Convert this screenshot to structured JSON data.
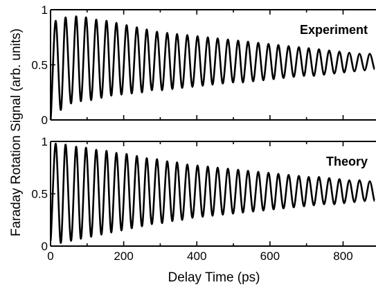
{
  "chart_data": {
    "type": "line",
    "ylabel": "Faraday Rotation Signal (arb. units)",
    "xlabel": "Delay Time (ps)",
    "xlim": [
      0,
      890
    ],
    "xticks": [
      0,
      200,
      400,
      600,
      800
    ],
    "grid": false,
    "legend": "none",
    "line_color": "#000000",
    "panels": [
      {
        "title": "Experiment",
        "title_position": "top-right",
        "ylim": [
          0,
          1
        ],
        "yticks": [
          0,
          0.5,
          1
        ],
        "ytick_labels": [
          "0",
          "0.5",
          "1"
        ],
        "series": [
          {
            "x": [
              0,
              14,
              28,
              41,
              56,
              70,
              83,
              97,
              111,
              125,
              139,
              153,
              166,
              180,
              194,
              208,
              222,
              236,
              250,
              263,
              277,
              291,
              305,
              319,
              333,
              346,
              360,
              374,
              388,
              402,
              416,
              430,
              443,
              457,
              471,
              485,
              499,
              513,
              526,
              540,
              554,
              568,
              582,
              596,
              610,
              623,
              637,
              651,
              665,
              679,
              693,
              706,
              720,
              734,
              748,
              762,
              776,
              790,
              803,
              817,
              831,
              845,
              859,
              873,
              886
            ],
            "y": [
              0.0,
              0.9,
              0.09,
              0.93,
              0.15,
              0.94,
              0.17,
              0.93,
              0.18,
              0.91,
              0.2,
              0.9,
              0.22,
              0.88,
              0.23,
              0.86,
              0.24,
              0.84,
              0.25,
              0.82,
              0.27,
              0.8,
              0.27,
              0.79,
              0.28,
              0.78,
              0.29,
              0.77,
              0.3,
              0.76,
              0.31,
              0.75,
              0.32,
              0.74,
              0.33,
              0.73,
              0.34,
              0.72,
              0.34,
              0.71,
              0.35,
              0.7,
              0.36,
              0.69,
              0.37,
              0.68,
              0.38,
              0.67,
              0.39,
              0.66,
              0.4,
              0.65,
              0.4,
              0.64,
              0.41,
              0.63,
              0.42,
              0.62,
              0.43,
              0.61,
              0.44,
              0.6,
              0.45,
              0.6,
              0.46
            ]
          }
        ]
      },
      {
        "title": "Theory",
        "title_position": "top-right",
        "ylim": [
          0,
          1
        ],
        "yticks": [
          0,
          0.5,
          1
        ],
        "ytick_labels": [
          "0",
          "0.5",
          "1"
        ],
        "series": [
          {
            "x": [
              0,
              14,
              28,
              41,
              56,
              70,
              83,
              97,
              111,
              125,
              139,
              153,
              166,
              180,
              194,
              208,
              222,
              236,
              250,
              263,
              277,
              291,
              305,
              319,
              333,
              346,
              360,
              374,
              388,
              402,
              416,
              430,
              443,
              457,
              471,
              485,
              499,
              513,
              526,
              540,
              554,
              568,
              582,
              596,
              610,
              623,
              637,
              651,
              665,
              679,
              693,
              706,
              720,
              734,
              748,
              762,
              776,
              790,
              803,
              817,
              831,
              845,
              859,
              873,
              886
            ],
            "y": [
              0.05,
              0.98,
              0.03,
              0.97,
              0.05,
              0.95,
              0.07,
              0.94,
              0.09,
              0.92,
              0.11,
              0.91,
              0.13,
              0.89,
              0.15,
              0.88,
              0.17,
              0.86,
              0.19,
              0.84,
              0.21,
              0.83,
              0.22,
              0.81,
              0.24,
              0.8,
              0.25,
              0.78,
              0.27,
              0.77,
              0.28,
              0.76,
              0.29,
              0.75,
              0.3,
              0.74,
              0.31,
              0.73,
              0.32,
              0.72,
              0.33,
              0.71,
              0.34,
              0.7,
              0.35,
              0.69,
              0.36,
              0.68,
              0.37,
              0.67,
              0.38,
              0.66,
              0.39,
              0.66,
              0.4,
              0.65,
              0.4,
              0.64,
              0.41,
              0.63,
              0.42,
              0.63,
              0.43,
              0.62,
              0.43
            ]
          }
        ]
      }
    ]
  }
}
